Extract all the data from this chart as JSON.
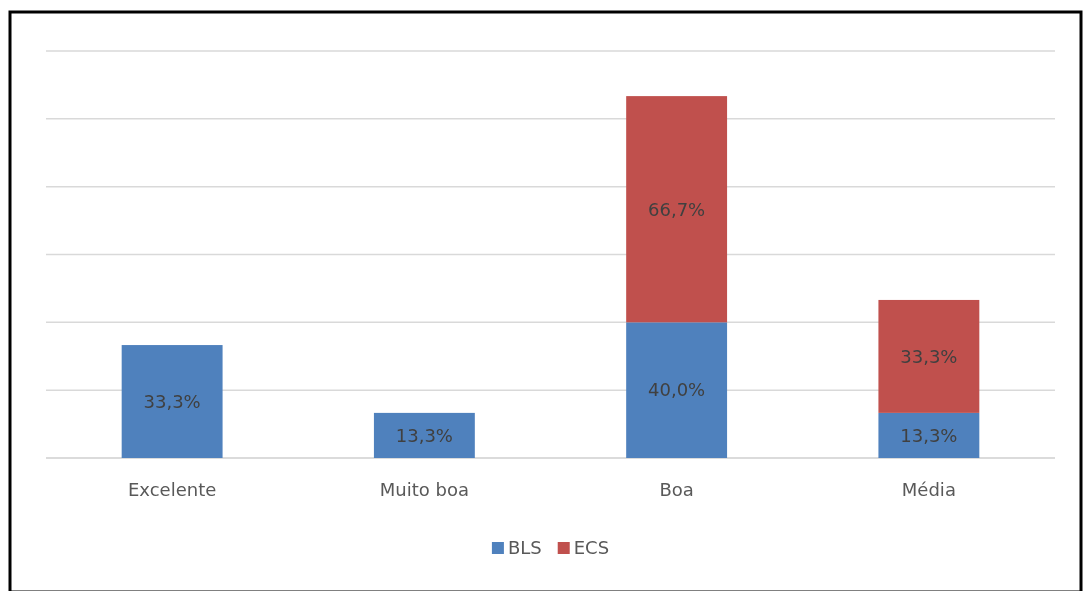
{
  "chart_data": {
    "type": "bar",
    "stacked": true,
    "categories": [
      "Excelente",
      "Muito boa",
      "Boa",
      "Média"
    ],
    "series": [
      {
        "name": "BLS",
        "color": "#4f81bd",
        "values": [
          33.3,
          13.3,
          40.0,
          13.3
        ],
        "value_labels": [
          "33,3%",
          "13,3%",
          "40,0%",
          "13,3%"
        ]
      },
      {
        "name": "ECS",
        "color": "#c0504d",
        "values": [
          null,
          null,
          66.7,
          33.3
        ],
        "value_labels": [
          null,
          null,
          "66,7%",
          "33,3%"
        ]
      }
    ],
    "ylim": [
      0,
      120
    ],
    "yticks": [
      {
        "value": 0,
        "label": null
      },
      {
        "value": 20,
        "label": null
      },
      {
        "value": 40,
        "label": null
      },
      {
        "value": 60,
        "label": null
      },
      {
        "value": 80,
        "label": null
      },
      {
        "value": 100,
        "label": null
      },
      {
        "value": 120,
        "label": null
      }
    ],
    "grid": "y",
    "tick_labels": "x",
    "legend": "bottom"
  }
}
